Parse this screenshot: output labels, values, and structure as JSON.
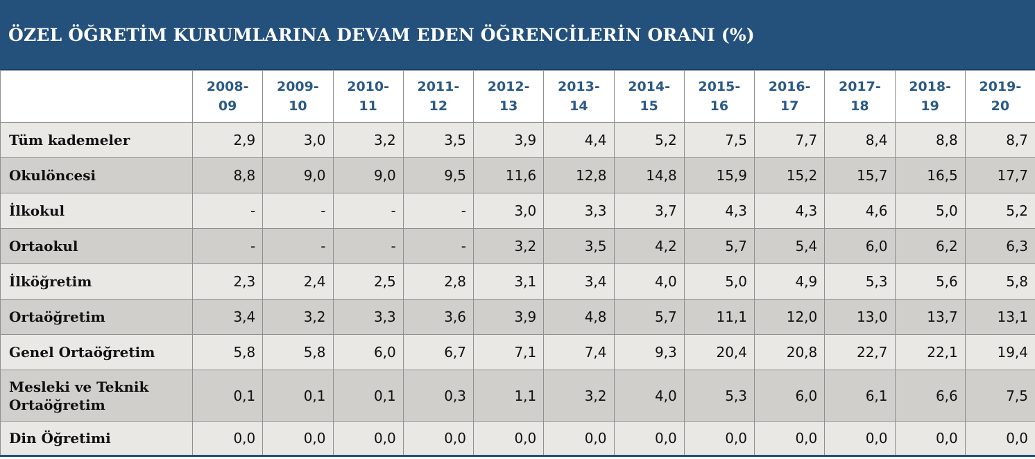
{
  "title": "ÖZEL ÖĞRETİM KURUMLARINA DEVAM EDEN ÖĞRENCİLERİN ORANI (%)",
  "colors": {
    "header_bg": "#24507c",
    "year_text": "#2b5a8a",
    "row_light": "#e9e8e5",
    "row_dark": "#d0cfcb"
  },
  "chart_data": {
    "type": "table",
    "title": "ÖZEL ÖĞRETİM KURUMLARINA DEVAM EDEN ÖĞRENCİLERİN ORANI (%)",
    "columns": [
      {
        "top": "2008-",
        "bottom": "09"
      },
      {
        "top": "2009-",
        "bottom": "10"
      },
      {
        "top": "2010-",
        "bottom": "11"
      },
      {
        "top": "2011-",
        "bottom": "12"
      },
      {
        "top": "2012-",
        "bottom": "13"
      },
      {
        "top": "2013-",
        "bottom": "14"
      },
      {
        "top": "2014-",
        "bottom": "15"
      },
      {
        "top": "2015-",
        "bottom": "16"
      },
      {
        "top": "2016-",
        "bottom": "17"
      },
      {
        "top": "2017-",
        "bottom": "18"
      },
      {
        "top": "2018-",
        "bottom": "19"
      },
      {
        "top": "2019-",
        "bottom": "20"
      }
    ],
    "rows": [
      {
        "label": [
          "Tüm kademeler"
        ],
        "values": [
          "2,9",
          "3,0",
          "3,2",
          "3,5",
          "3,9",
          "4,4",
          "5,2",
          "7,5",
          "7,7",
          "8,4",
          "8,8",
          "8,7"
        ]
      },
      {
        "label": [
          "Okulöncesi"
        ],
        "values": [
          "8,8",
          "9,0",
          "9,0",
          "9,5",
          "11,6",
          "12,8",
          "14,8",
          "15,9",
          "15,2",
          "15,7",
          "16,5",
          "17,7"
        ]
      },
      {
        "label": [
          "İlkokul"
        ],
        "values": [
          "-",
          "-",
          "-",
          "-",
          "3,0",
          "3,3",
          "3,7",
          "4,3",
          "4,3",
          "4,6",
          "5,0",
          "5,2"
        ]
      },
      {
        "label": [
          "Ortaokul"
        ],
        "values": [
          "-",
          "-",
          "-",
          "-",
          "3,2",
          "3,5",
          "4,2",
          "5,7",
          "5,4",
          "6,0",
          "6,2",
          "6,3"
        ]
      },
      {
        "label": [
          "İlköğretim"
        ],
        "values": [
          "2,3",
          "2,4",
          "2,5",
          "2,8",
          "3,1",
          "3,4",
          "4,0",
          "5,0",
          "4,9",
          "5,3",
          "5,6",
          "5,8"
        ]
      },
      {
        "label": [
          "Ortaöğretim"
        ],
        "values": [
          "3,4",
          "3,2",
          "3,3",
          "3,6",
          "3,9",
          "4,8",
          "5,7",
          "11,1",
          "12,0",
          "13,0",
          "13,7",
          "13,1"
        ]
      },
      {
        "label": [
          "Genel Ortaöğretim"
        ],
        "values": [
          "5,8",
          "5,8",
          "6,0",
          "6,7",
          "7,1",
          "7,4",
          "9,3",
          "20,4",
          "20,8",
          "22,7",
          "22,1",
          "19,4"
        ]
      },
      {
        "label": [
          "Mesleki ve Teknik",
          "Ortaöğretim"
        ],
        "values": [
          "0,1",
          "0,1",
          "0,1",
          "0,3",
          "1,1",
          "3,2",
          "4,0",
          "5,3",
          "6,0",
          "6,1",
          "6,6",
          "7,5"
        ]
      },
      {
        "label": [
          "Din Öğretimi"
        ],
        "values": [
          "0,0",
          "0,0",
          "0,0",
          "0,0",
          "0,0",
          "0,0",
          "0,0",
          "0,0",
          "0,0",
          "0,0",
          "0,0",
          "0,0"
        ]
      }
    ]
  }
}
